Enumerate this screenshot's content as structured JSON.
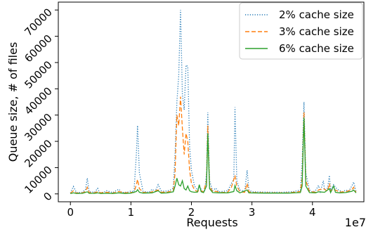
{
  "chart_data": {
    "type": "line",
    "xlabel": "Requests",
    "ylabel": "Queue size, # of files",
    "x_multiplier_label": "1e7",
    "xlim": [
      -0.2,
      4.85
    ],
    "ylim": [
      -3000,
      73000
    ],
    "x_ticks": [
      0,
      1,
      2,
      3,
      4
    ],
    "y_ticks": [
      0,
      10000,
      20000,
      30000,
      40000,
      50000,
      60000,
      70000
    ],
    "grid": false,
    "legend_position": "top-right",
    "series": [
      {
        "name": "2% cache size",
        "color": "#1f77b4",
        "style": "dotted",
        "points": [
          [
            0,
            300
          ],
          [
            0.05,
            2800
          ],
          [
            0.1,
            500
          ],
          [
            0.2,
            600
          ],
          [
            0.25,
            1800
          ],
          [
            0.28,
            6000
          ],
          [
            0.31,
            800
          ],
          [
            0.4,
            600
          ],
          [
            0.45,
            2100
          ],
          [
            0.48,
            500
          ],
          [
            0.55,
            600
          ],
          [
            0.6,
            1200
          ],
          [
            0.7,
            500
          ],
          [
            0.8,
            1800
          ],
          [
            0.85,
            500
          ],
          [
            0.95,
            700
          ],
          [
            1.0,
            1100
          ],
          [
            1.05,
            800
          ],
          [
            1.09,
            15000
          ],
          [
            1.11,
            26000
          ],
          [
            1.14,
            8000
          ],
          [
            1.2,
            1000
          ],
          [
            1.3,
            600
          ],
          [
            1.35,
            1800
          ],
          [
            1.4,
            900
          ],
          [
            1.45,
            3500
          ],
          [
            1.5,
            1200
          ],
          [
            1.55,
            1000
          ],
          [
            1.6,
            1100
          ],
          [
            1.65,
            1500
          ],
          [
            1.7,
            2200
          ],
          [
            1.73,
            15000
          ],
          [
            1.76,
            35000
          ],
          [
            1.79,
            45000
          ],
          [
            1.82,
            70000
          ],
          [
            1.85,
            38000
          ],
          [
            1.88,
            32000
          ],
          [
            1.91,
            49000
          ],
          [
            1.94,
            48500
          ],
          [
            1.97,
            18000
          ],
          [
            2.0,
            9000
          ],
          [
            2.05,
            3000
          ],
          [
            2.1,
            1500
          ],
          [
            2.14,
            2500
          ],
          [
            2.18,
            1000
          ],
          [
            2.22,
            1200
          ],
          [
            2.25,
            8000
          ],
          [
            2.27,
            31000
          ],
          [
            2.3,
            5000
          ],
          [
            2.35,
            1200
          ],
          [
            2.4,
            2200
          ],
          [
            2.45,
            800
          ],
          [
            2.5,
            900
          ],
          [
            2.6,
            1200
          ],
          [
            2.66,
            4000
          ],
          [
            2.7,
            5500
          ],
          [
            2.72,
            33000
          ],
          [
            2.75,
            5000
          ],
          [
            2.8,
            1500
          ],
          [
            2.88,
            1000
          ],
          [
            2.92,
            9000
          ],
          [
            2.95,
            1500
          ],
          [
            3.0,
            800
          ],
          [
            3.2,
            700
          ],
          [
            3.5,
            600
          ],
          [
            3.7,
            900
          ],
          [
            3.8,
            1500
          ],
          [
            3.83,
            12000
          ],
          [
            3.86,
            35000
          ],
          [
            3.89,
            8000
          ],
          [
            3.95,
            1500
          ],
          [
            4.0,
            700
          ],
          [
            4.05,
            1200
          ],
          [
            4.1,
            3200
          ],
          [
            4.13,
            800
          ],
          [
            4.18,
            5000
          ],
          [
            4.2,
            1500
          ],
          [
            4.25,
            2200
          ],
          [
            4.28,
            7000
          ],
          [
            4.3,
            1500
          ],
          [
            4.35,
            3500
          ],
          [
            4.4,
            2000
          ],
          [
            4.45,
            1200
          ],
          [
            4.5,
            800
          ],
          [
            4.55,
            1500
          ],
          [
            4.6,
            1000
          ],
          [
            4.65,
            3000
          ],
          [
            4.68,
            4500
          ],
          [
            4.72,
            1000
          ]
        ]
      },
      {
        "name": "3% cache size",
        "color": "#ff7f0e",
        "style": "dashed",
        "points": [
          [
            0,
            200
          ],
          [
            0.05,
            1200
          ],
          [
            0.1,
            300
          ],
          [
            0.2,
            400
          ],
          [
            0.25,
            900
          ],
          [
            0.28,
            2500
          ],
          [
            0.31,
            500
          ],
          [
            0.4,
            400
          ],
          [
            0.45,
            900
          ],
          [
            0.5,
            400
          ],
          [
            0.6,
            600
          ],
          [
            0.7,
            300
          ],
          [
            0.8,
            900
          ],
          [
            0.9,
            400
          ],
          [
            1.0,
            600
          ],
          [
            1.05,
            500
          ],
          [
            1.09,
            3500
          ],
          [
            1.11,
            5500
          ],
          [
            1.14,
            2000
          ],
          [
            1.2,
            600
          ],
          [
            1.3,
            400
          ],
          [
            1.35,
            800
          ],
          [
            1.45,
            1500
          ],
          [
            1.5,
            600
          ],
          [
            1.6,
            700
          ],
          [
            1.7,
            1200
          ],
          [
            1.73,
            8000
          ],
          [
            1.76,
            30000
          ],
          [
            1.79,
            26000
          ],
          [
            1.82,
            37000
          ],
          [
            1.85,
            25000
          ],
          [
            1.88,
            15000
          ],
          [
            1.91,
            23000
          ],
          [
            1.94,
            20000
          ],
          [
            1.97,
            9000
          ],
          [
            2.0,
            4000
          ],
          [
            2.05,
            1500
          ],
          [
            2.1,
            900
          ],
          [
            2.14,
            1500
          ],
          [
            2.2,
            700
          ],
          [
            2.25,
            5000
          ],
          [
            2.27,
            26000
          ],
          [
            2.3,
            3000
          ],
          [
            2.35,
            800
          ],
          [
            2.4,
            1000
          ],
          [
            2.5,
            500
          ],
          [
            2.6,
            700
          ],
          [
            2.66,
            2500
          ],
          [
            2.72,
            7000
          ],
          [
            2.75,
            3000
          ],
          [
            2.8,
            800
          ],
          [
            2.88,
            600
          ],
          [
            2.92,
            4000
          ],
          [
            2.95,
            800
          ],
          [
            3.0,
            500
          ],
          [
            3.3,
            400
          ],
          [
            3.6,
            400
          ],
          [
            3.8,
            900
          ],
          [
            3.83,
            6000
          ],
          [
            3.86,
            31000
          ],
          [
            3.89,
            5000
          ],
          [
            3.95,
            900
          ],
          [
            4.05,
            600
          ],
          [
            4.1,
            1500
          ],
          [
            4.18,
            2000
          ],
          [
            4.25,
            1000
          ],
          [
            4.28,
            4000
          ],
          [
            4.3,
            1000
          ],
          [
            4.35,
            1800
          ],
          [
            4.45,
            700
          ],
          [
            4.55,
            800
          ],
          [
            4.65,
            1600
          ],
          [
            4.68,
            2500
          ],
          [
            4.72,
            600
          ]
        ]
      },
      {
        "name": "6% cache size",
        "color": "#2ca02c",
        "style": "solid",
        "points": [
          [
            0,
            100
          ],
          [
            0.05,
            400
          ],
          [
            0.1,
            150
          ],
          [
            0.2,
            200
          ],
          [
            0.28,
            800
          ],
          [
            0.31,
            200
          ],
          [
            0.4,
            200
          ],
          [
            0.45,
            400
          ],
          [
            0.5,
            150
          ],
          [
            0.6,
            250
          ],
          [
            0.7,
            150
          ],
          [
            0.8,
            400
          ],
          [
            0.9,
            150
          ],
          [
            1.0,
            300
          ],
          [
            1.09,
            900
          ],
          [
            1.11,
            1600
          ],
          [
            1.14,
            600
          ],
          [
            1.2,
            300
          ],
          [
            1.35,
            400
          ],
          [
            1.45,
            1200
          ],
          [
            1.5,
            300
          ],
          [
            1.6,
            400
          ],
          [
            1.7,
            800
          ],
          [
            1.73,
            3000
          ],
          [
            1.76,
            6000
          ],
          [
            1.79,
            3500
          ],
          [
            1.82,
            3000
          ],
          [
            1.85,
            5000
          ],
          [
            1.88,
            2000
          ],
          [
            1.91,
            1500
          ],
          [
            1.94,
            3000
          ],
          [
            1.97,
            1200
          ],
          [
            2.0,
            800
          ],
          [
            2.05,
            600
          ],
          [
            2.1,
            700
          ],
          [
            2.13,
            3500
          ],
          [
            2.16,
            800
          ],
          [
            2.2,
            500
          ],
          [
            2.25,
            3000
          ],
          [
            2.27,
            23000
          ],
          [
            2.3,
            2000
          ],
          [
            2.35,
            500
          ],
          [
            2.45,
            400
          ],
          [
            2.6,
            400
          ],
          [
            2.7,
            900
          ],
          [
            2.72,
            3200
          ],
          [
            2.75,
            1200
          ],
          [
            2.8,
            400
          ],
          [
            2.92,
            1500
          ],
          [
            2.95,
            400
          ],
          [
            3.2,
            300
          ],
          [
            3.6,
            300
          ],
          [
            3.8,
            500
          ],
          [
            3.83,
            3000
          ],
          [
            3.86,
            29000
          ],
          [
            3.89,
            3000
          ],
          [
            3.95,
            500
          ],
          [
            4.05,
            400
          ],
          [
            4.1,
            800
          ],
          [
            4.2,
            600
          ],
          [
            4.28,
            2000
          ],
          [
            4.3,
            500
          ],
          [
            4.35,
            3000
          ],
          [
            4.38,
            600
          ],
          [
            4.45,
            400
          ],
          [
            4.55,
            500
          ],
          [
            4.65,
            1000
          ],
          [
            4.68,
            1500
          ],
          [
            4.72,
            400
          ]
        ]
      }
    ]
  }
}
